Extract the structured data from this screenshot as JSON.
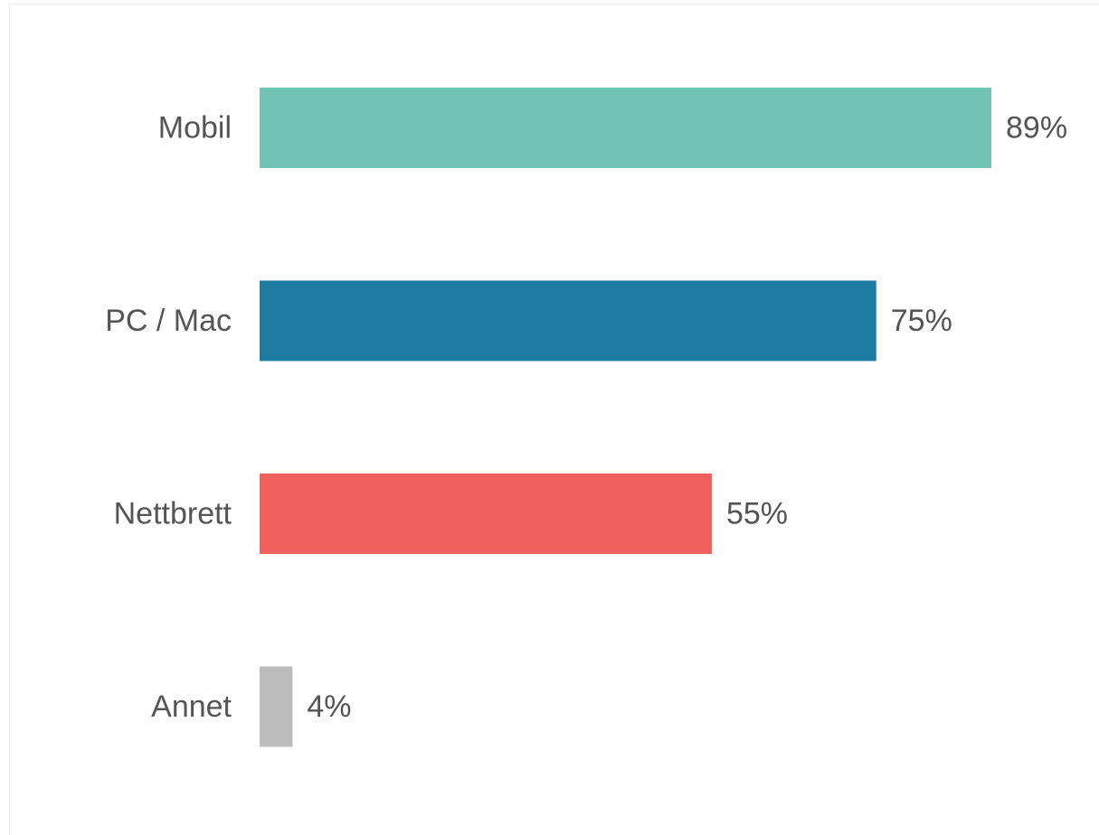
{
  "chart_data": {
    "type": "bar",
    "orientation": "horizontal",
    "categories": [
      "Mobil",
      "PC / Mac",
      "Nettbrett",
      "Annet"
    ],
    "values": [
      89,
      75,
      55,
      4
    ],
    "value_labels": [
      "89%",
      "75%",
      "55%",
      "4%"
    ],
    "colors": [
      "#72c3b4",
      "#1d7ba1",
      "#f0605d",
      "#bbbcbb"
    ],
    "title": "",
    "xlabel": "",
    "ylabel": "",
    "xlim": [
      0,
      100
    ],
    "grid": false,
    "legend": "none"
  }
}
